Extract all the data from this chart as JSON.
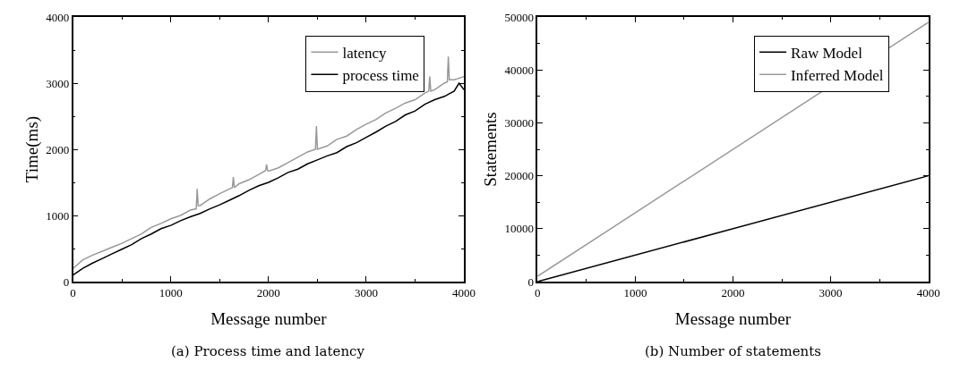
{
  "chart_data": [
    {
      "type": "line",
      "xlabel": "Message number",
      "ylabel": "Time(ms)",
      "xlim": [
        0,
        4000
      ],
      "ylim": [
        0,
        4000
      ],
      "xticks": [
        0,
        1000,
        2000,
        3000,
        4000
      ],
      "yticks": [
        0,
        1000,
        2000,
        3000,
        4000
      ],
      "legend": "top right",
      "annotations": [
        "(a) Process time and latency"
      ],
      "series": [
        {
          "name": "latency",
          "color": "#999999",
          "x": [
            0,
            100,
            200,
            300,
            400,
            500,
            600,
            700,
            800,
            900,
            1000,
            1100,
            1200,
            1260,
            1270,
            1280,
            1300,
            1400,
            1500,
            1600,
            1630,
            1640,
            1650,
            1700,
            1800,
            1900,
            1970,
            1980,
            1990,
            2000,
            2100,
            2200,
            2300,
            2400,
            2480,
            2490,
            2500,
            2600,
            2700,
            2800,
            2900,
            3000,
            3100,
            3200,
            3300,
            3400,
            3500,
            3600,
            3640,
            3650,
            3660,
            3700,
            3800,
            3830,
            3840,
            3850,
            3900,
            4000
          ],
          "values": [
            200,
            330,
            400,
            460,
            520,
            580,
            650,
            720,
            820,
            880,
            950,
            1000,
            1080,
            1100,
            1400,
            1150,
            1150,
            1250,
            1330,
            1400,
            1420,
            1580,
            1420,
            1480,
            1540,
            1620,
            1680,
            1770,
            1680,
            1670,
            1720,
            1800,
            1880,
            1960,
            2000,
            2350,
            2000,
            2050,
            2150,
            2200,
            2300,
            2380,
            2450,
            2550,
            2620,
            2700,
            2750,
            2850,
            2880,
            3100,
            2880,
            2900,
            3000,
            3020,
            3400,
            3050,
            3050,
            3100
          ]
        },
        {
          "name": "process time",
          "color": "#000000",
          "x": [
            0,
            100,
            200,
            300,
            400,
            500,
            600,
            700,
            800,
            900,
            1000,
            1100,
            1200,
            1300,
            1400,
            1500,
            1600,
            1700,
            1800,
            1900,
            2000,
            2100,
            2200,
            2300,
            2400,
            2500,
            2600,
            2700,
            2800,
            2900,
            3000,
            3100,
            3200,
            3300,
            3400,
            3500,
            3600,
            3700,
            3800,
            3900,
            3950,
            4000
          ],
          "values": [
            100,
            200,
            280,
            350,
            420,
            490,
            560,
            650,
            720,
            800,
            850,
            920,
            980,
            1030,
            1100,
            1160,
            1230,
            1300,
            1380,
            1450,
            1500,
            1570,
            1650,
            1700,
            1780,
            1840,
            1900,
            1950,
            2040,
            2100,
            2180,
            2260,
            2350,
            2420,
            2520,
            2580,
            2680,
            2750,
            2800,
            2880,
            3000,
            2900
          ]
        }
      ]
    },
    {
      "type": "line",
      "xlabel": "Message number",
      "ylabel": "Statements",
      "xlim": [
        0,
        4000
      ],
      "ylim": [
        0,
        50000
      ],
      "xticks": [
        0,
        1000,
        2000,
        3000,
        4000
      ],
      "yticks": [
        0,
        10000,
        20000,
        30000,
        40000,
        50000
      ],
      "legend": "top right",
      "annotations": [
        "(b) Number of statements"
      ],
      "series": [
        {
          "name": "Raw Model",
          "color": "#000000",
          "x": [
            0,
            4000
          ],
          "values": [
            0,
            20000
          ]
        },
        {
          "name": "Inferred Model",
          "color": "#999999",
          "x": [
            0,
            4000
          ],
          "values": [
            1000,
            49000
          ]
        }
      ]
    }
  ]
}
